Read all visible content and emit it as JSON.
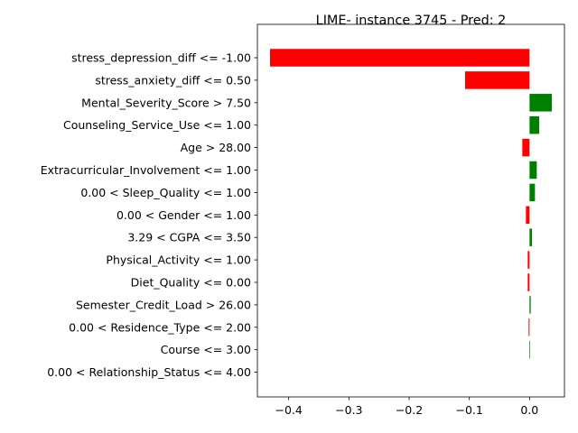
{
  "chart_data": {
    "type": "bar",
    "orientation": "horizontal",
    "title": "LIME- instance 3745 - Pred: 2",
    "categories": [
      "stress_depression_diff <= -1.00",
      "stress_anxiety_diff <= 0.50",
      "Mental_Severity_Score > 7.50",
      "Counseling_Service_Use <= 1.00",
      "Age > 28.00",
      "Extracurricular_Involvement <= 1.00",
      "0.00 < Sleep_Quality <= 1.00",
      "0.00 < Gender <= 1.00",
      "3.29 < CGPA <= 3.50",
      "Physical_Activity <= 1.00",
      "Diet_Quality <= 0.00",
      "Semester_Credit_Load > 26.00",
      "0.00 < Residence_Type <= 2.00",
      "Course <= 3.00",
      "0.00 < Relationship_Status <= 4.00"
    ],
    "values": [
      -0.431,
      -0.107,
      0.037,
      0.016,
      -0.012,
      0.012,
      0.009,
      -0.006,
      0.004,
      -0.003,
      -0.003,
      0.002,
      -0.0015,
      0.001,
      0.0
    ],
    "colors": {
      "positive": "#008000",
      "negative": "#ff0000"
    },
    "xticks": [
      -0.4,
      -0.3,
      -0.2,
      -0.1,
      0.0
    ],
    "xtick_labels": [
      "−0.4",
      "−0.3",
      "−0.2",
      "−0.1",
      "0.0"
    ],
    "xlim": [
      -0.452,
      0.058
    ],
    "xlabel": "",
    "ylabel": "",
    "grid": false,
    "legend": "none"
  }
}
